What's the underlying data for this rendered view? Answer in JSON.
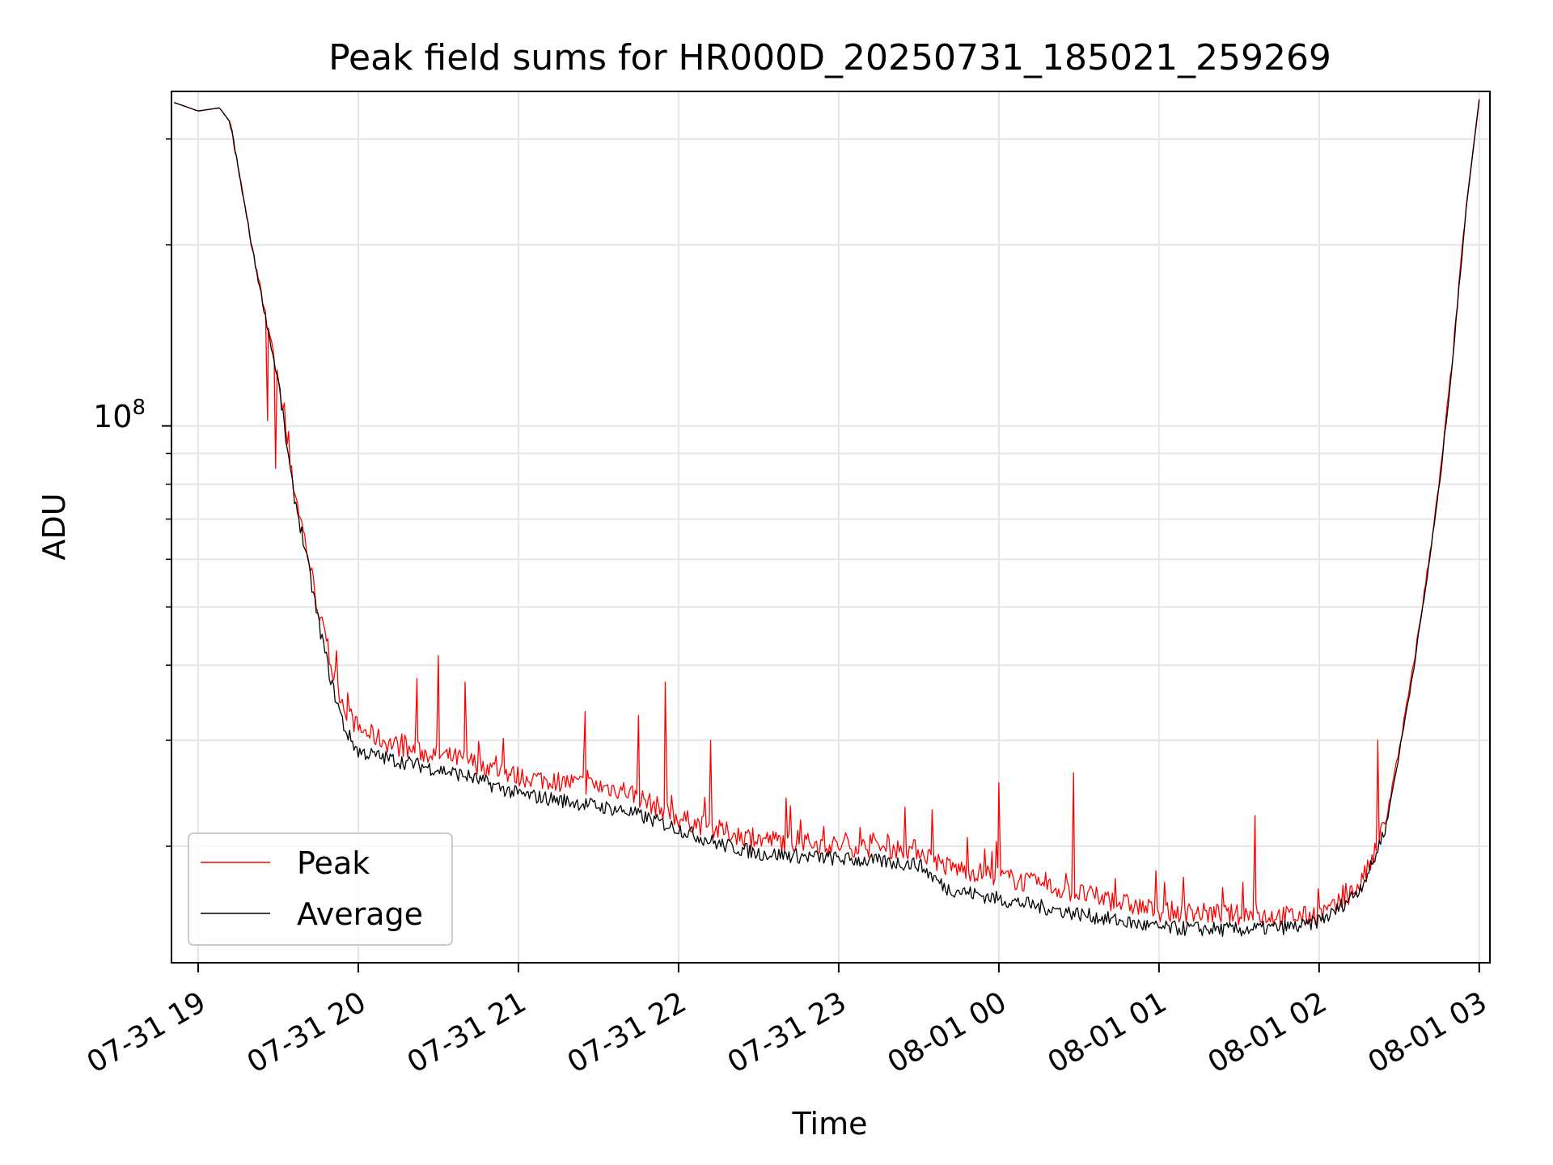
{
  "chart_data": {
    "type": "line",
    "title": "Peak field sums for HR000D_20250731_185021_259269",
    "xlabel": "Time",
    "ylabel": "ADU",
    "yscale": "log",
    "xlim": [
      "2025-07-31 18:50",
      "2025-08-01 03:04"
    ],
    "ylim": [
      12800000,
      360000000
    ],
    "x_ticks": [
      "07-31 19",
      "07-31 20",
      "07-31 21",
      "07-31 22",
      "07-31 23",
      "08-01 00",
      "08-01 01",
      "08-01 02",
      "08-01 03"
    ],
    "y_ticks": [
      {
        "base": "10",
        "exponent": "8",
        "value": 100000000
      }
    ],
    "grid": true,
    "legend_position": "lower-left",
    "series": [
      {
        "name": "Peak",
        "color": "#ff0000",
        "x": [
          "2025-07-31 18:51",
          "2025-07-31 19:00",
          "2025-07-31 19:08",
          "2025-07-31 19:12",
          "2025-07-31 19:20",
          "2025-07-31 19:30",
          "2025-07-31 19:35",
          "2025-07-31 19:40",
          "2025-07-31 19:45",
          "2025-07-31 19:50",
          "2025-07-31 19:55",
          "2025-07-31 20:00",
          "2025-07-31 20:10",
          "2025-07-31 20:20",
          "2025-07-31 20:40",
          "2025-07-31 21:00",
          "2025-07-31 21:20",
          "2025-07-31 21:40",
          "2025-07-31 22:00",
          "2025-07-31 22:15",
          "2025-07-31 22:30",
          "2025-07-31 23:00",
          "2025-07-31 23:30",
          "2025-07-31 23:40",
          "2025-08-01 00:00",
          "2025-08-01 00:30",
          "2025-08-01 01:00",
          "2025-08-01 01:30",
          "2025-08-01 01:55",
          "2025-08-01 02:05",
          "2025-08-01 02:15",
          "2025-08-01 02:20",
          "2025-08-01 02:25",
          "2025-08-01 02:30",
          "2025-08-01 02:35",
          "2025-08-01 02:40",
          "2025-08-01 02:45",
          "2025-08-01 02:50",
          "2025-08-01 02:55",
          "2025-08-01 03:00"
        ],
        "y": [
          345000000,
          334000000,
          338000000,
          320000000,
          200000000,
          120000000,
          82000000,
          64000000,
          49000000,
          39000000,
          33500000,
          31000000,
          29500000,
          28500000,
          27500000,
          25800000,
          25200000,
          24500000,
          22000000,
          21000000,
          20300000,
          19800000,
          19500000,
          18300000,
          17600000,
          16500000,
          15400000,
          15200000,
          15100000,
          15500000,
          17000000,
          18700000,
          22000000,
          29000000,
          39000000,
          55000000,
          80000000,
          130000000,
          230000000,
          350000000
        ],
        "spikes": [
          {
            "x": "2025-07-31 19:26",
            "y": 102000000
          },
          {
            "x": "2025-07-31 19:29",
            "y": 85000000
          },
          {
            "x": "2025-07-31 19:56",
            "y": 36000000
          },
          {
            "x": "2025-07-31 20:22",
            "y": 38000000
          },
          {
            "x": "2025-07-31 20:30",
            "y": 41500000
          },
          {
            "x": "2025-07-31 20:40",
            "y": 37500000
          },
          {
            "x": "2025-07-31 21:25",
            "y": 33500000
          },
          {
            "x": "2025-07-31 21:45",
            "y": 33000000
          },
          {
            "x": "2025-07-31 21:55",
            "y": 37500000
          },
          {
            "x": "2025-07-31 22:12",
            "y": 30000000
          },
          {
            "x": "2025-07-31 23:35",
            "y": 23000000
          },
          {
            "x": "2025-08-01 00:00",
            "y": 25500000
          },
          {
            "x": "2025-08-01 00:28",
            "y": 26500000
          },
          {
            "x": "2025-08-01 01:36",
            "y": 22500000
          },
          {
            "x": "2025-08-01 02:22",
            "y": 30000000
          }
        ]
      },
      {
        "name": "Average",
        "color": "#000000",
        "x": [
          "2025-07-31 18:51",
          "2025-07-31 19:00",
          "2025-07-31 19:08",
          "2025-07-31 19:12",
          "2025-07-31 19:20",
          "2025-07-31 19:30",
          "2025-07-31 19:35",
          "2025-07-31 19:40",
          "2025-07-31 19:45",
          "2025-07-31 19:50",
          "2025-07-31 19:55",
          "2025-07-31 20:00",
          "2025-07-31 20:10",
          "2025-07-31 20:20",
          "2025-07-31 20:40",
          "2025-07-31 21:00",
          "2025-07-31 21:20",
          "2025-07-31 21:40",
          "2025-07-31 22:00",
          "2025-07-31 22:15",
          "2025-07-31 22:30",
          "2025-07-31 23:00",
          "2025-07-31 23:30",
          "2025-07-31 23:40",
          "2025-08-01 00:00",
          "2025-08-01 00:30",
          "2025-08-01 01:00",
          "2025-08-01 01:30",
          "2025-08-01 01:55",
          "2025-08-01 02:05",
          "2025-08-01 02:15",
          "2025-08-01 02:20",
          "2025-08-01 02:25",
          "2025-08-01 02:30",
          "2025-08-01 02:35",
          "2025-08-01 02:40",
          "2025-08-01 02:45",
          "2025-08-01 02:50",
          "2025-08-01 02:55",
          "2025-08-01 03:00"
        ],
        "y": [
          345000000,
          334000000,
          338000000,
          320000000,
          200000000,
          118000000,
          80000000,
          62000000,
          47000000,
          37000000,
          31000000,
          28500000,
          27800000,
          27200000,
          26000000,
          24200000,
          23500000,
          22700000,
          21200000,
          20000000,
          19300000,
          18900000,
          18500000,
          16900000,
          16200000,
          15300000,
          14500000,
          14400000,
          14600000,
          15300000,
          16800000,
          18500000,
          21500000,
          28500000,
          38500000,
          54000000,
          79000000,
          128000000,
          228000000,
          348000000
        ]
      }
    ]
  }
}
